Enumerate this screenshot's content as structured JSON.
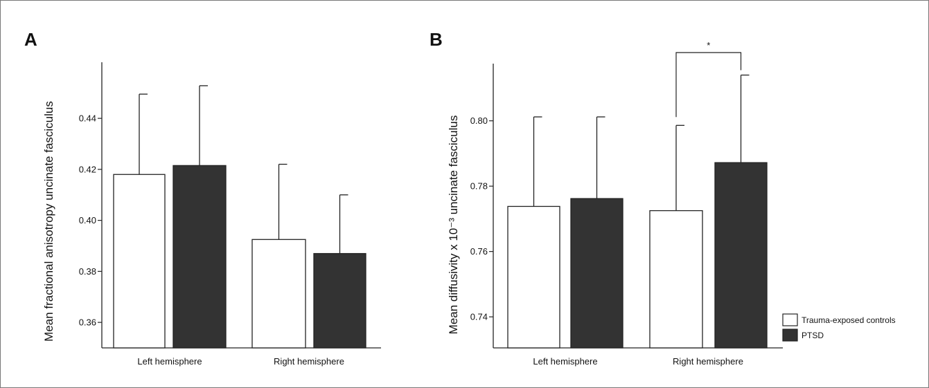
{
  "chart_data": [
    {
      "type": "bar",
      "panel_label": "A",
      "title": "",
      "xlabel": "",
      "ylabel": "Mean fractional anisotropy uncinate fasciculus",
      "categories": [
        "Left hemisphere",
        "Right hemisphere"
      ],
      "ylim": [
        0.35,
        0.462
      ],
      "yticks": [
        0.36,
        0.38,
        0.4,
        0.42,
        0.44
      ],
      "ytick_labels": [
        "0.36",
        "0.38",
        "0.40",
        "0.42",
        "0.44"
      ],
      "series": [
        {
          "name": "Trauma-exposed controls",
          "color": "#ffffff",
          "values": [
            0.418,
            0.3925
          ],
          "error_upper": [
            0.4495,
            0.422
          ]
        },
        {
          "name": "PTSD",
          "color": "#333333",
          "values": [
            0.4215,
            0.387
          ],
          "error_upper": [
            0.4528,
            0.41
          ]
        }
      ],
      "annotations": []
    },
    {
      "type": "bar",
      "panel_label": "B",
      "title": "",
      "xlabel": "",
      "ylabel": "Mean diffusivity x 10⁻³ uncinate fasciculus",
      "categories": [
        "Left hemisphere",
        "Right hemisphere"
      ],
      "ylim": [
        0.7305,
        0.8175
      ],
      "yticks": [
        0.74,
        0.76,
        0.78,
        0.8
      ],
      "ytick_labels": [
        "0.74",
        "0.76",
        "0.78",
        "0.80"
      ],
      "series": [
        {
          "name": "Trauma-exposed controls",
          "color": "#ffffff",
          "values": [
            0.7738,
            0.7725
          ],
          "error_upper": [
            0.8012,
            0.7986
          ]
        },
        {
          "name": "PTSD",
          "color": "#333333",
          "values": [
            0.7762,
            0.7872
          ],
          "error_upper": [
            0.8012,
            0.814
          ]
        }
      ],
      "annotations": [
        {
          "text": "*",
          "between": [
            "Trauma-exposed controls",
            "PTSD"
          ],
          "category": "Right hemisphere"
        }
      ],
      "legend": {
        "placement": "bottom-right",
        "entries": [
          {
            "label": "Trauma-exposed controls",
            "color": "#ffffff"
          },
          {
            "label": "PTSD",
            "color": "#333333"
          }
        ]
      }
    }
  ]
}
